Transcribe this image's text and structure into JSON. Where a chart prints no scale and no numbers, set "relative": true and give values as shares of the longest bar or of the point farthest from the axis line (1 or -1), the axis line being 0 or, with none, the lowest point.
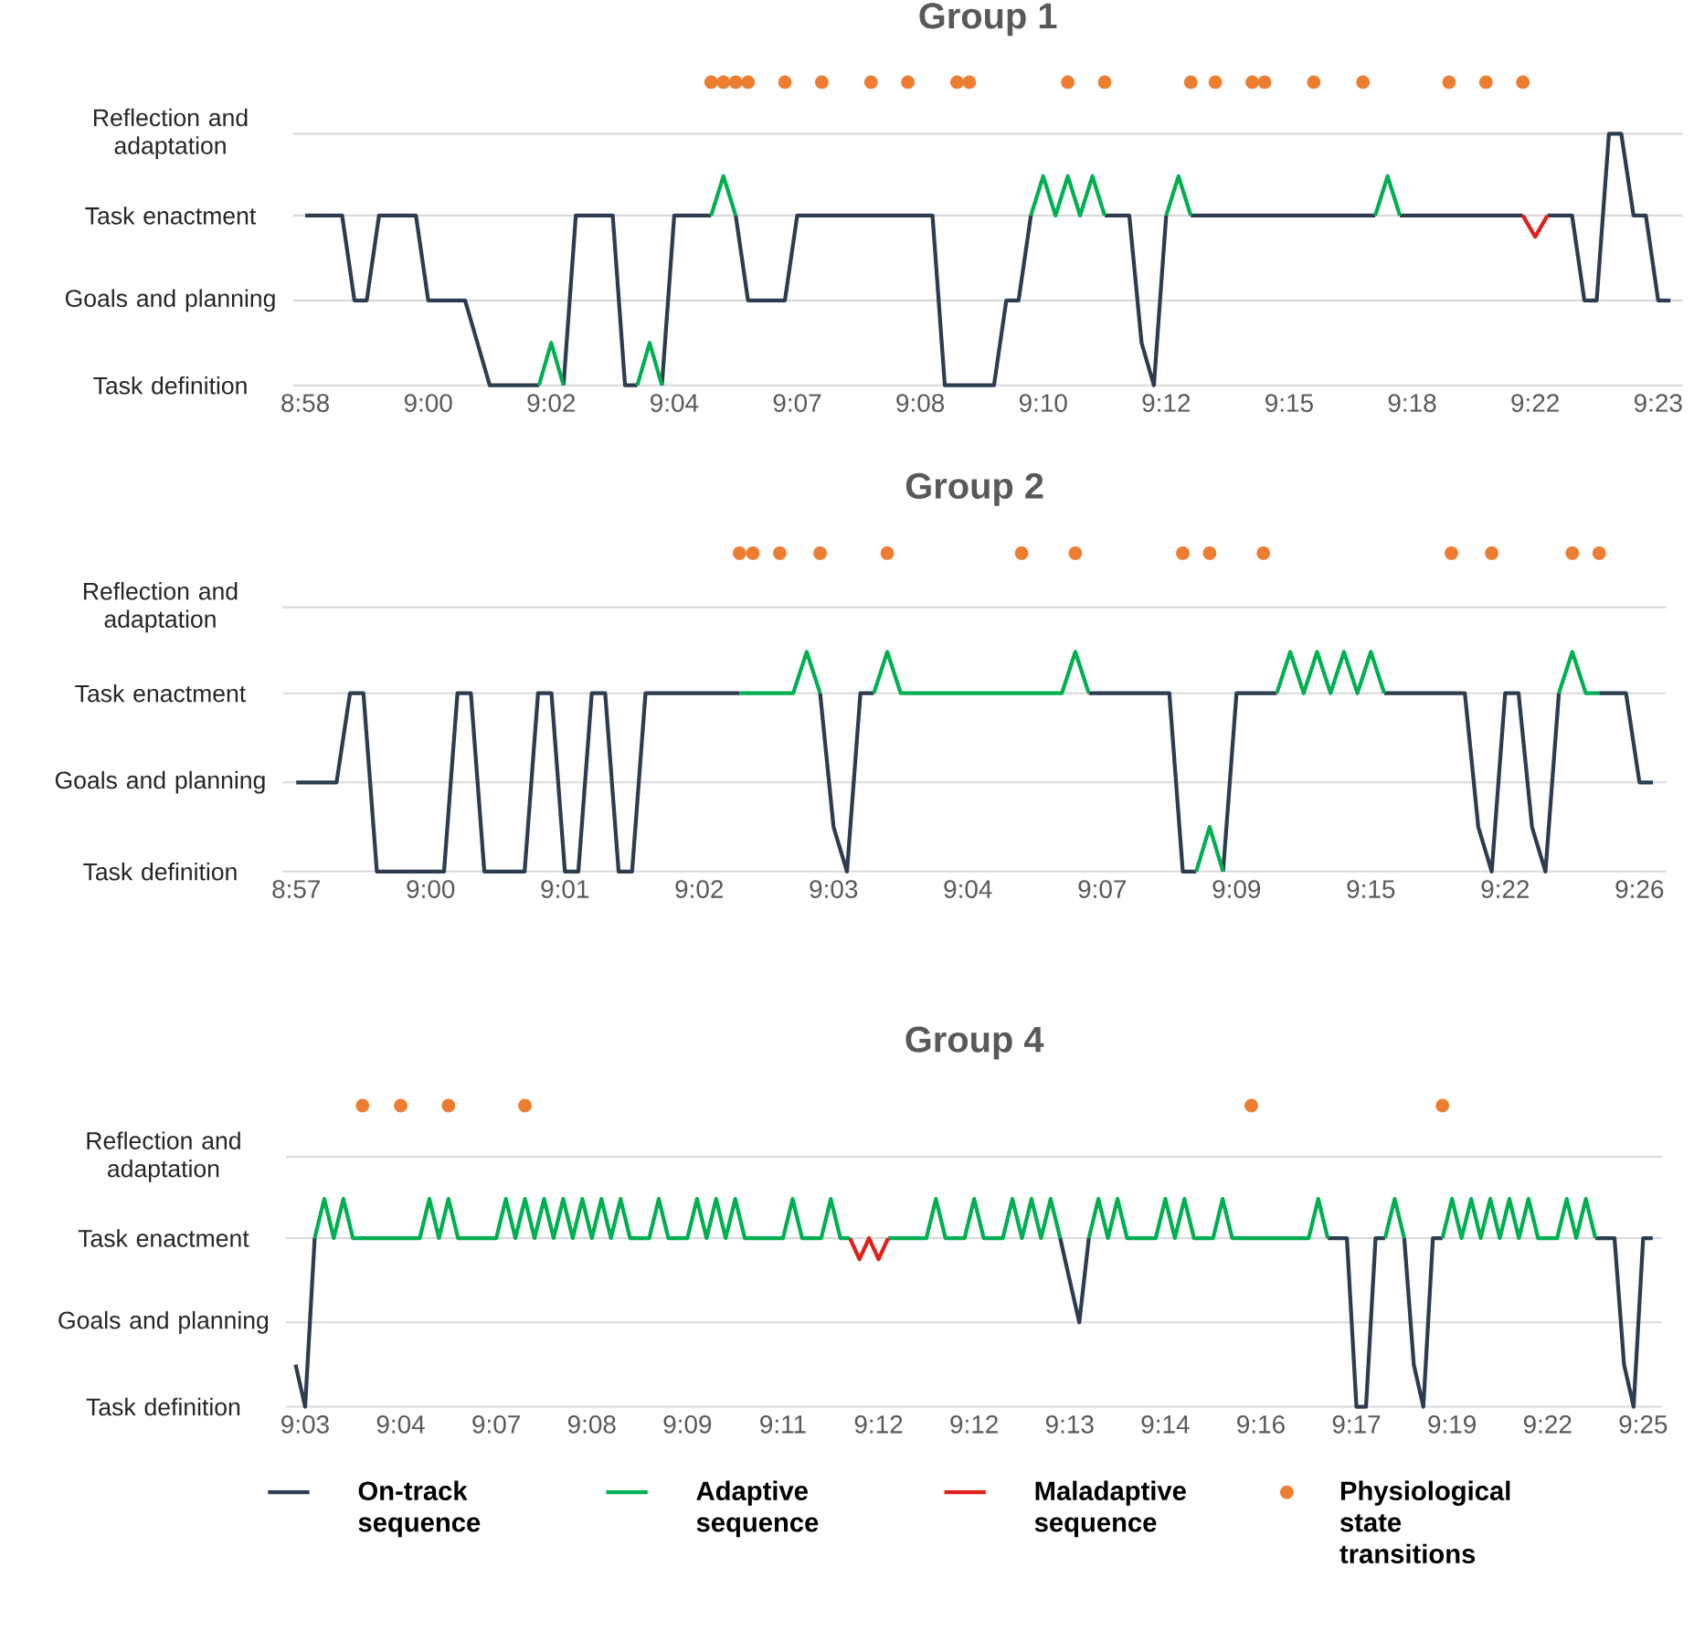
{
  "chart_data": [
    {
      "type": "line",
      "title": "Group 1",
      "relative": true,
      "categories": [
        "8:58",
        null,
        null,
        null,
        null,
        null,
        null,
        null,
        null,
        null,
        "9:00",
        null,
        null,
        null,
        null,
        null,
        null,
        null,
        null,
        null,
        "9:02",
        null,
        null,
        null,
        null,
        null,
        null,
        null,
        null,
        null,
        "9:04",
        null,
        null,
        null,
        null,
        null,
        null,
        null,
        null,
        null,
        "9:07",
        null,
        null,
        null,
        null,
        null,
        null,
        null,
        null,
        null,
        "9:08",
        null,
        null,
        null,
        null,
        null,
        null,
        null,
        null,
        null,
        "9:10",
        null,
        null,
        null,
        null,
        null,
        null,
        null,
        null,
        null,
        "9:12",
        null,
        null,
        null,
        null,
        null,
        null,
        null,
        null,
        null,
        "9:15",
        null,
        null,
        null,
        null,
        null,
        null,
        null,
        null,
        null,
        "9:18",
        null,
        null,
        null,
        null,
        null,
        null,
        null,
        null,
        null,
        "9:22",
        null,
        null,
        null,
        null,
        null,
        null,
        null,
        null,
        null,
        "9:23",
        null
      ],
      "ref_lines": [
        {
          "axis": "y",
          "value": 0,
          "label": "Task definition",
          "color": "#d9d9d9"
        },
        {
          "axis": "y",
          "value": 0.28,
          "label": "Goals and planning",
          "color": "#d9d9d9"
        },
        {
          "axis": "y",
          "value": 0.56,
          "label": "Task enactment",
          "color": "#d9d9d9"
        },
        {
          "axis": "y",
          "value": 0.83,
          "label": "Reflection and adaptation",
          "color": "#d9d9d9"
        }
      ],
      "series": [
        {
          "color": "#2e3c50",
          "values": [
            0.56,
            0.56,
            0.56,
            0.56,
            0.28,
            0.28,
            0.56,
            0.56,
            0.56,
            0.56,
            0.28,
            0.28,
            0.28,
            0.28,
            0.14,
            0,
            0,
            0,
            0,
            0,
            null,
            0,
            0.56,
            0.56,
            0.56,
            0.56,
            0,
            0,
            null,
            0,
            0.56,
            0.56,
            0.56,
            0.56,
            null,
            0.56,
            0.28,
            0.28,
            0.28,
            0.28,
            0.56,
            0.56,
            0.56,
            0.56,
            0.56,
            0.56,
            0.56,
            0.56,
            0.56,
            0.56,
            0.56,
            0.56,
            0,
            0,
            0,
            0,
            0,
            0.28,
            0.28,
            0.56,
            null,
            null,
            null,
            null,
            null,
            0.56,
            0.56,
            0.56,
            0.14,
            0,
            0.56,
            null,
            0.56,
            0.56,
            0.56,
            0.56,
            0.56,
            0.56,
            0.56,
            0.56,
            0.56,
            0.56,
            0.56,
            0.56,
            0.56,
            0.56,
            0.56,
            0.56,
            null,
            0.56,
            0.56,
            0.56,
            0.56,
            0.56,
            0.56,
            0.56,
            0.56,
            0.56,
            0.56,
            0.56,
            null,
            0.56,
            0.56,
            0.56,
            0.28,
            0.28,
            0.83,
            0.83,
            0.56,
            0.56,
            0.28,
            0.28
          ]
        },
        {
          "color": "#00b050",
          "values": [
            null,
            null,
            null,
            null,
            null,
            null,
            null,
            null,
            null,
            null,
            null,
            null,
            null,
            null,
            null,
            null,
            null,
            null,
            null,
            0,
            0.14,
            0,
            null,
            null,
            null,
            null,
            null,
            0,
            0.14,
            0,
            null,
            null,
            null,
            0.56,
            0.69,
            0.56,
            null,
            null,
            null,
            null,
            null,
            null,
            null,
            null,
            null,
            null,
            null,
            null,
            null,
            null,
            null,
            null,
            null,
            null,
            null,
            null,
            null,
            null,
            null,
            0.56,
            0.69,
            0.56,
            0.69,
            0.56,
            0.69,
            0.56,
            null,
            null,
            null,
            null,
            0.56,
            0.69,
            0.56,
            null,
            null,
            null,
            null,
            null,
            null,
            null,
            null,
            null,
            null,
            null,
            null,
            null,
            null,
            0.56,
            0.69,
            0.56,
            null,
            null,
            null,
            null,
            null,
            null,
            null,
            null,
            null,
            null,
            null,
            null,
            null,
            null,
            null,
            null,
            null,
            null,
            null,
            null,
            null,
            null
          ]
        },
        {
          "color": "#e0201b",
          "values": [
            null,
            null,
            null,
            null,
            null,
            null,
            null,
            null,
            null,
            null,
            null,
            null,
            null,
            null,
            null,
            null,
            null,
            null,
            null,
            null,
            null,
            null,
            null,
            null,
            null,
            null,
            null,
            null,
            null,
            null,
            null,
            null,
            null,
            null,
            null,
            null,
            null,
            null,
            null,
            null,
            null,
            null,
            null,
            null,
            null,
            null,
            null,
            null,
            null,
            null,
            null,
            null,
            null,
            null,
            null,
            null,
            null,
            null,
            null,
            null,
            null,
            null,
            null,
            null,
            null,
            null,
            null,
            null,
            null,
            null,
            null,
            null,
            null,
            null,
            null,
            null,
            null,
            null,
            null,
            null,
            null,
            null,
            null,
            null,
            null,
            null,
            null,
            null,
            null,
            null,
            null,
            null,
            null,
            null,
            null,
            null,
            null,
            null,
            null,
            0.56,
            0.49,
            0.56,
            null,
            null,
            null,
            null,
            null,
            null,
            null,
            null,
            null,
            null
          ]
        },
        {
          "type": "scatter",
          "marker": "circle",
          "color": "#ed7d31",
          "values": [
            null,
            null,
            null,
            null,
            null,
            null,
            null,
            null,
            null,
            null,
            null,
            null,
            null,
            null,
            null,
            null,
            null,
            null,
            null,
            null,
            null,
            null,
            null,
            null,
            null,
            null,
            null,
            null,
            null,
            null,
            null,
            null,
            null,
            1,
            1,
            1,
            1,
            null,
            null,
            1,
            null,
            null,
            1,
            null,
            null,
            null,
            1,
            null,
            null,
            1,
            null,
            null,
            null,
            1,
            1,
            null,
            null,
            null,
            null,
            null,
            null,
            null,
            1,
            null,
            null,
            1,
            null,
            null,
            null,
            null,
            null,
            null,
            1,
            null,
            1,
            null,
            null,
            1,
            1,
            null,
            null,
            null,
            1,
            null,
            null,
            null,
            1,
            null,
            null,
            null,
            null,
            null,
            null,
            1,
            null,
            null,
            1,
            null,
            null,
            1,
            null,
            null,
            null,
            null,
            null,
            null,
            null,
            null,
            null,
            null,
            null,
            null
          ]
        }
      ]
    },
    {
      "type": "line",
      "title": "Group 2",
      "relative": true,
      "categories": [
        "8:57",
        null,
        null,
        null,
        null,
        null,
        null,
        null,
        null,
        null,
        "9:00",
        null,
        null,
        null,
        null,
        null,
        null,
        null,
        null,
        null,
        "9:01",
        null,
        null,
        null,
        null,
        null,
        null,
        null,
        null,
        null,
        "9:02",
        null,
        null,
        null,
        null,
        null,
        null,
        null,
        null,
        null,
        "9:03",
        null,
        null,
        null,
        null,
        null,
        null,
        null,
        null,
        null,
        "9:04",
        null,
        null,
        null,
        null,
        null,
        null,
        null,
        null,
        null,
        "9:07",
        null,
        null,
        null,
        null,
        null,
        null,
        null,
        null,
        null,
        "9:09",
        null,
        null,
        null,
        null,
        null,
        null,
        null,
        null,
        null,
        "9:15",
        null,
        null,
        null,
        null,
        null,
        null,
        null,
        null,
        null,
        "9:22",
        null,
        null,
        null,
        null,
        null,
        null,
        null,
        null,
        null,
        "9:26",
        null
      ],
      "ref_lines": [
        {
          "axis": "y",
          "value": 0,
          "label": "Task definition",
          "color": "#d9d9d9"
        },
        {
          "axis": "y",
          "value": 0.28,
          "label": "Goals and planning",
          "color": "#d9d9d9"
        },
        {
          "axis": "y",
          "value": 0.56,
          "label": "Task enactment",
          "color": "#d9d9d9"
        },
        {
          "axis": "y",
          "value": 0.83,
          "label": "Reflection and adaptation",
          "color": "#d9d9d9"
        }
      ],
      "series": [
        {
          "color": "#2e3c50",
          "values": [
            0.28,
            0.28,
            0.28,
            0.28,
            0.56,
            0.56,
            0,
            0,
            0,
            0,
            0,
            0,
            0.56,
            0.56,
            0,
            0,
            0,
            0,
            0.56,
            0.56,
            0,
            0,
            0.56,
            0.56,
            0,
            0,
            0.56,
            0.56,
            0.56,
            0.56,
            0.56,
            0.56,
            0.56,
            0.56,
            null,
            null,
            null,
            null,
            null,
            0.56,
            0.14,
            0,
            0.56,
            0.56,
            null,
            null,
            null,
            null,
            null,
            null,
            null,
            null,
            null,
            null,
            null,
            null,
            null,
            null,
            null,
            0.56,
            0.56,
            0.56,
            0.56,
            0.56,
            0.56,
            0.56,
            0,
            0,
            null,
            0,
            0.56,
            0.56,
            0.56,
            0.56,
            null,
            null,
            null,
            null,
            null,
            null,
            null,
            0.56,
            0.56,
            0.56,
            0.56,
            0.56,
            0.56,
            0.56,
            0.14,
            0,
            0.56,
            0.56,
            0.14,
            0,
            0.56,
            null,
            null,
            0.56,
            0.56,
            0.56,
            0.28,
            0.28
          ]
        },
        {
          "color": "#00b050",
          "values": [
            null,
            null,
            null,
            null,
            null,
            null,
            null,
            null,
            null,
            null,
            null,
            null,
            null,
            null,
            null,
            null,
            null,
            null,
            null,
            null,
            null,
            null,
            null,
            null,
            null,
            null,
            null,
            null,
            null,
            null,
            null,
            null,
            null,
            0.56,
            0.56,
            0.56,
            0.56,
            0.56,
            0.69,
            0.56,
            null,
            null,
            null,
            0.56,
            0.69,
            0.56,
            0.56,
            0.56,
            0.56,
            0.56,
            0.56,
            0.56,
            0.56,
            0.56,
            0.56,
            0.56,
            0.56,
            0.56,
            0.69,
            0.56,
            null,
            null,
            null,
            null,
            null,
            null,
            null,
            0,
            0.14,
            0,
            null,
            null,
            null,
            0.56,
            0.69,
            0.56,
            0.69,
            0.56,
            0.69,
            0.56,
            0.69,
            0.56,
            null,
            null,
            null,
            null,
            null,
            null,
            null,
            null,
            null,
            null,
            null,
            null,
            0.56,
            0.69,
            0.56,
            0.56,
            null,
            null,
            null,
            null
          ]
        },
        {
          "type": "scatter",
          "marker": "circle",
          "color": "#ed7d31",
          "values": [
            null,
            null,
            null,
            null,
            null,
            null,
            null,
            null,
            null,
            null,
            null,
            null,
            null,
            null,
            null,
            null,
            null,
            null,
            null,
            null,
            null,
            null,
            null,
            null,
            null,
            null,
            null,
            null,
            null,
            null,
            null,
            null,
            null,
            1,
            1,
            null,
            1,
            null,
            null,
            1,
            null,
            null,
            null,
            null,
            1,
            null,
            null,
            null,
            null,
            null,
            null,
            null,
            null,
            null,
            1,
            null,
            null,
            null,
            1,
            null,
            null,
            null,
            null,
            null,
            null,
            null,
            1,
            null,
            1,
            null,
            null,
            null,
            1,
            null,
            null,
            null,
            null,
            null,
            null,
            null,
            null,
            null,
            null,
            null,
            null,
            null,
            1,
            null,
            null,
            1,
            null,
            null,
            null,
            null,
            null,
            1,
            null,
            1,
            null,
            null,
            null,
            null
          ]
        }
      ]
    },
    {
      "type": "line",
      "title": "Group 4",
      "relative": true,
      "legend": "bottom",
      "categories": [
        null,
        "9:03",
        null,
        null,
        null,
        null,
        null,
        null,
        null,
        null,
        null,
        "9:04",
        null,
        null,
        null,
        null,
        null,
        null,
        null,
        null,
        null,
        "9:07",
        null,
        null,
        null,
        null,
        null,
        null,
        null,
        null,
        null,
        "9:08",
        null,
        null,
        null,
        null,
        null,
        null,
        null,
        null,
        null,
        "9:09",
        null,
        null,
        null,
        null,
        null,
        null,
        null,
        null,
        null,
        "9:11",
        null,
        null,
        null,
        null,
        null,
        null,
        null,
        null,
        null,
        "9:12",
        null,
        null,
        null,
        null,
        null,
        null,
        null,
        null,
        null,
        "9:12",
        null,
        null,
        null,
        null,
        null,
        null,
        null,
        null,
        null,
        "9:13",
        null,
        null,
        null,
        null,
        null,
        null,
        null,
        null,
        null,
        "9:14",
        null,
        null,
        null,
        null,
        null,
        null,
        null,
        null,
        null,
        "9:16",
        null,
        null,
        null,
        null,
        null,
        null,
        null,
        null,
        null,
        "9:17",
        null,
        null,
        null,
        null,
        null,
        null,
        null,
        null,
        null,
        "9:19",
        null,
        null,
        null,
        null,
        null,
        null,
        null,
        null,
        null,
        "9:22",
        null,
        null,
        null,
        null,
        null,
        null,
        null,
        null,
        null,
        "9:25",
        null
      ],
      "ref_lines": [
        {
          "axis": "y",
          "value": 0,
          "label": "Task definition",
          "color": "#d9d9d9"
        },
        {
          "axis": "y",
          "value": 0.28,
          "label": "Goals and planning",
          "color": "#d9d9d9"
        },
        {
          "axis": "y",
          "value": 0.56,
          "label": "Task enactment",
          "color": "#d9d9d9"
        },
        {
          "axis": "y",
          "value": 0.83,
          "label": "Reflection and adaptation",
          "color": "#d9d9d9"
        }
      ],
      "series": [
        {
          "name": "On-track sequence",
          "color": "#2e3c50",
          "values": [
            0.14,
            0,
            0.56,
            null,
            null,
            null,
            null,
            null,
            null,
            null,
            null,
            null,
            null,
            null,
            null,
            null,
            null,
            null,
            null,
            null,
            null,
            null,
            null,
            null,
            null,
            null,
            null,
            null,
            null,
            null,
            null,
            null,
            null,
            null,
            null,
            null,
            null,
            null,
            null,
            null,
            null,
            null,
            null,
            null,
            null,
            null,
            null,
            null,
            null,
            null,
            null,
            null,
            null,
            null,
            null,
            null,
            null,
            null,
            null,
            null,
            null,
            null,
            null,
            null,
            null,
            null,
            null,
            null,
            null,
            null,
            null,
            null,
            null,
            null,
            null,
            null,
            null,
            null,
            null,
            null,
            0.56,
            0.42,
            0.28,
            0.56,
            null,
            null,
            null,
            null,
            null,
            null,
            null,
            null,
            null,
            null,
            null,
            null,
            null,
            null,
            null,
            null,
            null,
            null,
            null,
            null,
            null,
            null,
            null,
            null,
            0.56,
            0.56,
            0.56,
            0,
            0,
            0.56,
            0.56,
            null,
            0.56,
            0.14,
            0,
            0.56,
            0.56,
            null,
            null,
            null,
            null,
            null,
            null,
            null,
            null,
            null,
            null,
            null,
            null,
            null,
            null,
            null,
            0.56,
            0.56,
            0.56,
            0.14,
            0,
            0.56,
            0.56
          ]
        },
        {
          "name": "Adaptive sequence",
          "color": "#00b050",
          "values": [
            null,
            null,
            0.56,
            0.69,
            0.56,
            0.69,
            0.56,
            0.56,
            0.56,
            0.56,
            0.56,
            0.56,
            0.56,
            0.56,
            0.69,
            0.56,
            0.69,
            0.56,
            0.56,
            0.56,
            0.56,
            0.56,
            0.69,
            0.56,
            0.69,
            0.56,
            0.69,
            0.56,
            0.69,
            0.56,
            0.69,
            0.56,
            0.69,
            0.56,
            0.69,
            0.56,
            0.56,
            0.56,
            0.69,
            0.56,
            0.56,
            0.56,
            0.69,
            0.56,
            0.69,
            0.56,
            0.69,
            0.56,
            0.56,
            0.56,
            0.56,
            0.56,
            0.69,
            0.56,
            0.56,
            0.56,
            0.69,
            0.56,
            0.56,
            null,
            null,
            null,
            0.56,
            0.56,
            0.56,
            0.56,
            0.56,
            0.69,
            0.56,
            0.56,
            0.56,
            0.69,
            0.56,
            0.56,
            0.56,
            0.69,
            0.56,
            0.69,
            0.56,
            0.69,
            0.56,
            null,
            null,
            0.56,
            0.69,
            0.56,
            0.69,
            0.56,
            0.56,
            0.56,
            0.56,
            0.69,
            0.56,
            0.69,
            0.56,
            0.56,
            0.56,
            0.69,
            0.56,
            0.56,
            0.56,
            0.56,
            0.56,
            0.56,
            0.56,
            0.56,
            0.56,
            0.69,
            0.56,
            null,
            null,
            null,
            null,
            null,
            0.56,
            0.69,
            0.56,
            null,
            null,
            null,
            0.56,
            0.69,
            0.56,
            0.69,
            0.56,
            0.69,
            0.56,
            0.69,
            0.56,
            0.69,
            0.56,
            0.56,
            0.56,
            0.69,
            0.56,
            0.69,
            0.56,
            null,
            null,
            null,
            null,
            null,
            null
          ]
        },
        {
          "name": "Maladaptive sequence",
          "color": "#e0201b",
          "values": [
            null,
            null,
            null,
            null,
            null,
            null,
            null,
            null,
            null,
            null,
            null,
            null,
            null,
            null,
            null,
            null,
            null,
            null,
            null,
            null,
            null,
            null,
            null,
            null,
            null,
            null,
            null,
            null,
            null,
            null,
            null,
            null,
            null,
            null,
            null,
            null,
            null,
            null,
            null,
            null,
            null,
            null,
            null,
            null,
            null,
            null,
            null,
            null,
            null,
            null,
            null,
            null,
            null,
            null,
            null,
            null,
            null,
            null,
            0.56,
            0.49,
            0.56,
            0.49,
            0.56,
            null,
            null,
            null,
            null,
            null,
            null,
            null,
            null,
            null,
            null,
            null,
            null,
            null,
            null,
            null,
            null,
            null,
            null,
            null,
            null,
            null,
            null,
            null,
            null,
            null,
            null,
            null,
            null,
            null,
            null,
            null,
            null,
            null,
            null,
            null,
            null,
            null,
            null,
            null,
            null,
            null,
            null,
            null,
            null,
            null,
            null,
            null,
            null,
            null,
            null,
            null,
            null,
            null,
            null,
            null,
            null,
            null,
            null,
            null,
            null,
            null,
            null,
            null,
            null,
            null,
            null,
            null,
            null,
            null,
            null,
            null,
            null,
            null,
            null,
            null,
            null,
            null,
            null,
            null,
            null
          ]
        },
        {
          "type": "scatter",
          "marker": "circle",
          "name": "Physiological state transitions",
          "color": "#ed7d31",
          "values": [
            null,
            null,
            null,
            null,
            null,
            null,
            null,
            1,
            null,
            null,
            null,
            1,
            null,
            null,
            null,
            null,
            1,
            null,
            null,
            null,
            null,
            null,
            null,
            null,
            1,
            null,
            null,
            null,
            null,
            null,
            null,
            null,
            null,
            null,
            null,
            null,
            null,
            null,
            null,
            null,
            null,
            null,
            null,
            null,
            null,
            null,
            null,
            null,
            null,
            null,
            null,
            null,
            null,
            null,
            null,
            null,
            null,
            null,
            null,
            null,
            null,
            null,
            null,
            null,
            null,
            null,
            null,
            null,
            null,
            null,
            null,
            null,
            null,
            null,
            null,
            null,
            null,
            null,
            null,
            null,
            null,
            null,
            null,
            null,
            null,
            null,
            null,
            null,
            null,
            null,
            null,
            null,
            null,
            null,
            null,
            null,
            null,
            null,
            null,
            null,
            1,
            null,
            null,
            null,
            null,
            null,
            null,
            null,
            null,
            null,
            null,
            null,
            null,
            null,
            null,
            null,
            null,
            null,
            null,
            null,
            1,
            null,
            null,
            null,
            null,
            null,
            null,
            null,
            null,
            null,
            null,
            null,
            null,
            null,
            null,
            null,
            null,
            null,
            null,
            null,
            null,
            null,
            null
          ]
        }
      ]
    }
  ]
}
